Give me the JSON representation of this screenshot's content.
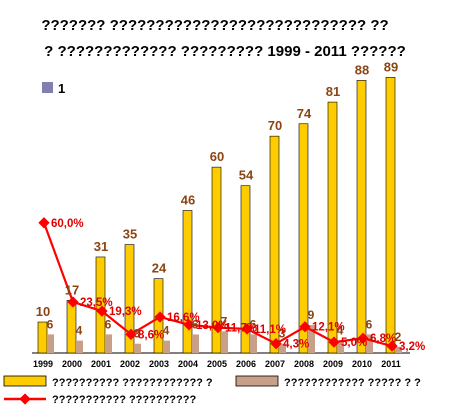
{
  "chart_data": {
    "type": "bar",
    "title_lines": [
      "??????? ???????????????????????????? ??",
      "? ????????????? ????????? 1999 - 2011 ??????"
    ],
    "categories": [
      "1999",
      "2000",
      "2001",
      "2002",
      "2003",
      "2004",
      "2005",
      "2006",
      "2007",
      "2008",
      "2009",
      "2010",
      "2011"
    ],
    "series": [
      {
        "name": "?????????? ???????????? ?",
        "kind": "bar",
        "color": "#ffcc00",
        "values": [
          10,
          17,
          31,
          35,
          24,
          46,
          60,
          54,
          70,
          74,
          81,
          88,
          89
        ],
        "labels": [
          "10",
          "17",
          "31",
          "35",
          "24",
          "46",
          "60",
          "54",
          "70",
          "74",
          "81",
          "88",
          "89"
        ]
      },
      {
        "name": "???????????? ????? ? ?",
        "kind": "bar",
        "color": "#c8a08a",
        "values": [
          6,
          4,
          6,
          3,
          4,
          6,
          7,
          6,
          3,
          9,
          4,
          6,
          2
        ],
        "labels": [
          "6",
          "4",
          "6",
          "3",
          "4",
          "6",
          "7",
          "6",
          "3",
          "9",
          "4",
          "6",
          "2"
        ]
      },
      {
        "name": "??????????? ??????????",
        "kind": "line",
        "color": "#ff0000",
        "values": [
          60.0,
          23.5,
          19.3,
          8.6,
          16.6,
          13.0,
          11.7,
          11.1,
          4.3,
          12.1,
          5.0,
          6.8,
          3.2
        ],
        "labels": [
          "60,0%",
          "23,5%",
          "19,3%",
          "8,6%",
          "16,6%",
          "13,0%",
          "11,7%",
          "11,1%",
          "4,3%",
          "12,1%",
          "5,0%",
          "6,8%",
          "3,2%"
        ]
      }
    ],
    "ylim_bars": [
      0,
      92
    ],
    "ylim_line": [
      0,
      100
    ],
    "legend_marker_label": "1",
    "legend_position": "bottom",
    "grid": false
  }
}
